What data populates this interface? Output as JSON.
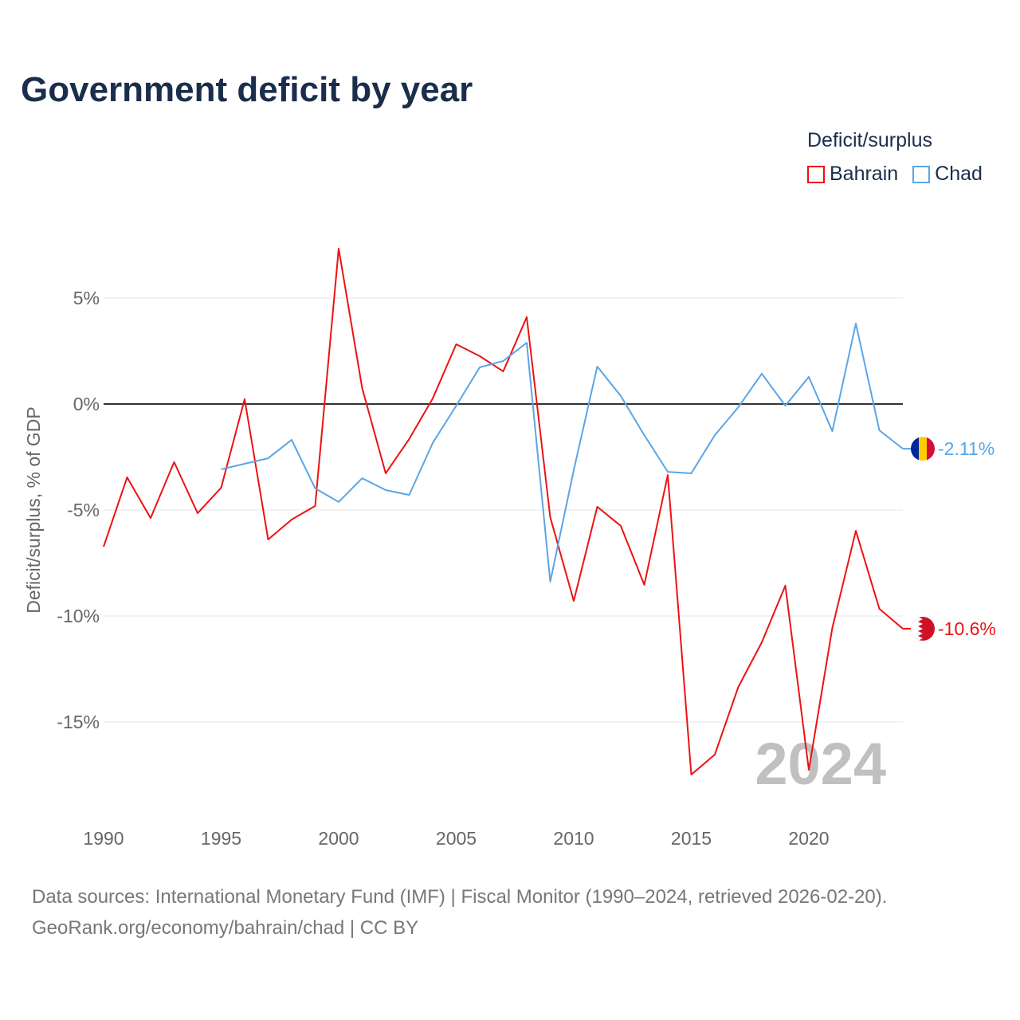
{
  "title": "Government deficit by year",
  "legend": {
    "title": "Deficit/surplus",
    "items": [
      {
        "label": "Bahrain",
        "color": "#ee1111"
      },
      {
        "label": "Chad",
        "color": "#5aa5e6"
      }
    ]
  },
  "footer": {
    "line1": "Data sources: International Monetary Fund (IMF) | Fiscal Monitor (1990–2024, retrieved 2026-02-20).",
    "line2": "GeoRank.org/economy/bahrain/chad | CC BY"
  },
  "chart_data": {
    "type": "line",
    "title": "Government deficit by year",
    "xlabel": "",
    "ylabel": "Deficit/surplus, % of GDP",
    "xlim": [
      1990,
      2024
    ],
    "ylim": [
      -19,
      8
    ],
    "x_ticks": [
      1990,
      1995,
      2000,
      2005,
      2010,
      2015,
      2020
    ],
    "x_tick_labels": [
      "1990",
      "1995",
      "2000",
      "2005",
      "2010",
      "2015",
      "2020"
    ],
    "y_ticks": [
      5,
      0,
      -5,
      -10,
      -15
    ],
    "y_tick_labels": [
      "5%",
      "0%",
      "-5%",
      "-10%",
      "-15%"
    ],
    "year_watermark": "2024",
    "series": [
      {
        "name": "Bahrain",
        "color": "#ee1111",
        "end_label": "-10.6%",
        "x": [
          1990,
          1991,
          1992,
          1993,
          1994,
          1995,
          1996,
          1997,
          1998,
          1999,
          2000,
          2001,
          2002,
          2003,
          2004,
          2005,
          2006,
          2007,
          2008,
          2009,
          2010,
          2011,
          2012,
          2013,
          2014,
          2015,
          2016,
          2017,
          2018,
          2019,
          2020,
          2021,
          2022,
          2023,
          2024
        ],
        "values": [
          -6.73,
          -3.46,
          -5.38,
          -2.74,
          -5.15,
          -3.95,
          0.23,
          -6.39,
          -5.45,
          -4.81,
          7.33,
          0.75,
          -3.27,
          -1.65,
          0.26,
          2.82,
          2.26,
          1.54,
          4.1,
          -5.34,
          -9.29,
          -4.85,
          -5.75,
          -8.53,
          -3.35,
          -17.48,
          -16.54,
          -13.35,
          -11.24,
          -8.57,
          -17.26,
          -10.56,
          -5.98,
          -9.66,
          -10.6
        ]
      },
      {
        "name": "Chad",
        "color": "#5aa5e6",
        "end_label": "-2.11%",
        "x": [
          1995,
          1996,
          1997,
          1998,
          1999,
          2000,
          2001,
          2002,
          2003,
          2004,
          2005,
          2006,
          2007,
          2008,
          2009,
          2010,
          2011,
          2012,
          2013,
          2014,
          2015,
          2016,
          2017,
          2018,
          2019,
          2020,
          2021,
          2022,
          2023,
          2024
        ],
        "values": [
          -3.08,
          -2.82,
          -2.56,
          -1.69,
          -3.98,
          -4.62,
          -3.5,
          -4.06,
          -4.29,
          -1.84,
          -0.08,
          1.73,
          2.03,
          2.89,
          -8.38,
          -3.12,
          1.77,
          0.38,
          -1.47,
          -3.2,
          -3.27,
          -1.47,
          -0.15,
          1.43,
          -0.08,
          1.28,
          -1.28,
          3.8,
          -1.24,
          -2.11
        ]
      }
    ]
  }
}
